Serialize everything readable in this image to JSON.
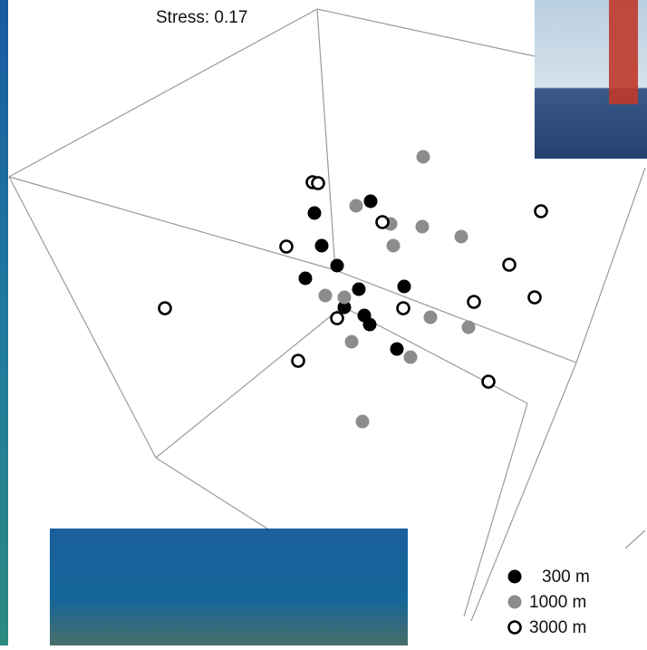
{
  "chart_data": {
    "type": "scatter",
    "annotation": "Stress: 0.17",
    "series": [
      {
        "name": "300 m",
        "color": "#000000",
        "marker": "filled",
        "x": [
          409,
          347,
          355,
          372,
          337,
          446,
          396,
          380,
          402,
          408,
          438
        ],
        "values": [
          222,
          235,
          271,
          293,
          307,
          316,
          319,
          339,
          348,
          358,
          385
        ]
      },
      {
        "name": "1000 m",
        "color": "#8c8c8c",
        "marker": "filled",
        "x": [
          467,
          393,
          431,
          466,
          509,
          434,
          359,
          380,
          475,
          517,
          388,
          453,
          400
        ],
        "values": [
          173,
          227,
          247,
          250,
          261,
          271,
          326,
          328,
          350,
          361,
          377,
          394,
          465
        ]
      },
      {
        "name": "3000 m",
        "color": "#000000",
        "marker": "open",
        "x": [
          345,
          351,
          422,
          316,
          597,
          562,
          590,
          523,
          445,
          372,
          182,
          329,
          539
        ],
        "values": [
          201,
          202,
          245,
          272,
          233,
          292,
          328,
          333,
          340,
          351,
          340,
          398,
          421
        ]
      }
    ]
  }
}
